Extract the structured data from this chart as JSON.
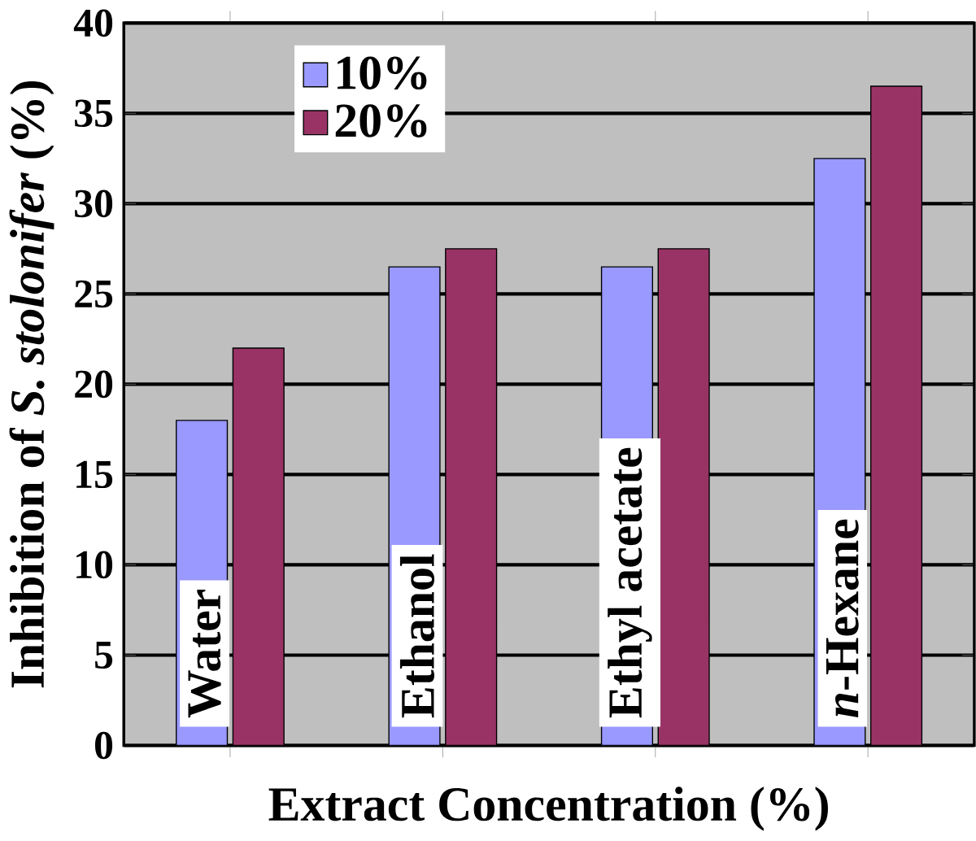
{
  "chart_data": {
    "type": "bar",
    "xlabel": "Extract Concentration (%)",
    "ylabel": "Inhibition of *S. stolonifer* (%)",
    "categories": [
      "Water",
      "Ethanol",
      "Ethyl acetate",
      "*n*-Hexane"
    ],
    "series": [
      {
        "name": "10%",
        "color": "#9999ff",
        "values": [
          18,
          26.5,
          26.5,
          32.5
        ]
      },
      {
        "name": "20%",
        "color": "#993366",
        "values": [
          22,
          27.5,
          27.5,
          36.5
        ]
      }
    ],
    "ylim": [
      0,
      40
    ],
    "yticks": [
      0,
      5,
      10,
      15,
      20,
      25,
      30,
      35,
      40
    ],
    "grid": "y",
    "legend": "top left"
  }
}
